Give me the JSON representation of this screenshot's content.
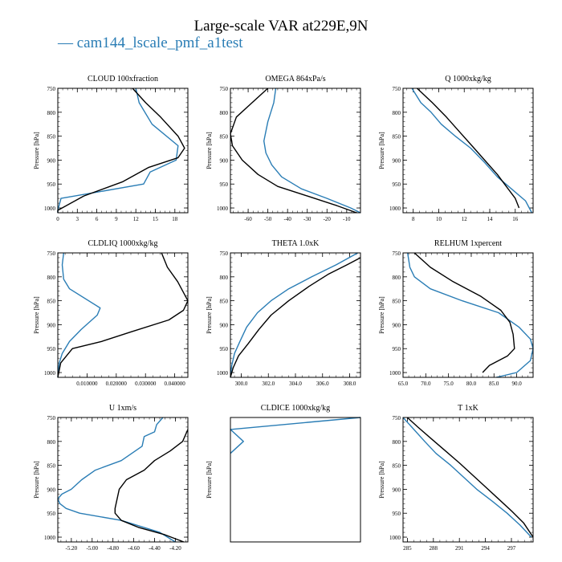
{
  "title": "Large-scale VAR at229E,9N",
  "legend": {
    "line": "—",
    "label": "cam144_lscale_pmf_a1test"
  },
  "colors": {
    "test": "#2a7db5",
    "control": "#000000"
  },
  "chart_data": [
    {
      "type": "line",
      "title": "CLOUD 100xfraction",
      "ylabel": "Pressure [hPa]",
      "xlim": [
        0,
        20
      ],
      "ylim": [
        1010,
        750
      ],
      "ylog": false,
      "xticks": [
        0,
        3,
        6,
        9,
        12,
        15,
        18
      ],
      "xticklabels": [
        "0",
        "3",
        "6",
        "9",
        "12",
        "15",
        "18"
      ],
      "yticks": [
        750,
        800,
        850,
        900,
        950,
        1000
      ],
      "yticklabels": [
        "750",
        "800",
        "850",
        "900",
        "950",
        "1000"
      ],
      "series": [
        {
          "color": "#2a7db5",
          "x": [
            12,
            12.5,
            14.5,
            18.5,
            18.2,
            14.2,
            13.2,
            0.5,
            0,
            0
          ],
          "y": [
            750,
            780,
            825,
            870,
            900,
            925,
            950,
            980,
            1005,
            1010
          ]
        },
        {
          "color": "#000000",
          "x": [
            11.5,
            13.5,
            15.8,
            18.5,
            19.5,
            18.5,
            14,
            10,
            4,
            0,
            0
          ],
          "y": [
            750,
            780,
            810,
            850,
            875,
            895,
            915,
            945,
            975,
            1005,
            1010
          ]
        }
      ]
    },
    {
      "type": "line",
      "title": "OMEGA 864xPa/s",
      "ylabel": "Pressure [hPa]",
      "xlim": [
        -69,
        -3
      ],
      "ylim": [
        1010,
        750
      ],
      "ylog": false,
      "xticks": [
        -60,
        -50,
        -40,
        -30,
        -20,
        -10
      ],
      "xticklabels": [
        "-60",
        "-50",
        "-40",
        "-30",
        "-20",
        "-10"
      ],
      "yticks": [
        750,
        800,
        850,
        900,
        950,
        1000
      ],
      "yticklabels": [
        "750",
        "800",
        "850",
        "900",
        "950",
        "1000"
      ],
      "series": [
        {
          "color": "#2a7db5",
          "x": [
            -46,
            -47,
            -50,
            -52,
            -51,
            -48,
            -43,
            -33,
            -20,
            -8,
            -3
          ],
          "y": [
            750,
            780,
            820,
            860,
            885,
            910,
            935,
            960,
            980,
            1000,
            1010
          ]
        },
        {
          "color": "#000000",
          "x": [
            -50,
            -58,
            -66,
            -69,
            -68,
            -63,
            -55,
            -45,
            -30,
            -15,
            -5
          ],
          "y": [
            750,
            780,
            810,
            845,
            870,
            900,
            930,
            955,
            975,
            995,
            1010
          ]
        }
      ]
    },
    {
      "type": "line",
      "title": "Q 1000xkg/kg",
      "ylabel": "Pressure [hPa]",
      "xlim": [
        7.2,
        17.4
      ],
      "ylim": [
        1010,
        750
      ],
      "ylog": false,
      "xticks": [
        8,
        10,
        12,
        14,
        16
      ],
      "xticklabels": [
        "8",
        "10",
        "12",
        "14",
        "16"
      ],
      "yticks": [
        750,
        800,
        850,
        900,
        950,
        1000
      ],
      "yticklabels": [
        "750",
        "800",
        "850",
        "900",
        "950",
        "1000"
      ],
      "series": [
        {
          "color": "#2a7db5",
          "x": [
            7.9,
            8.6,
            9.4,
            10.2,
            11.3,
            12.5,
            13.6,
            14.6,
            15.7,
            16.8,
            17.3
          ],
          "y": [
            750,
            780,
            800,
            825,
            850,
            875,
            905,
            935,
            960,
            985,
            1010
          ]
        },
        {
          "color": "#000000",
          "x": [
            8.3,
            9.5,
            10.6,
            11.6,
            12.6,
            13.6,
            14.6,
            15.3,
            16,
            16.3
          ],
          "y": [
            750,
            780,
            810,
            840,
            870,
            900,
            930,
            955,
            980,
            1000
          ]
        }
      ]
    },
    {
      "type": "line",
      "title": "CLDLIQ 1000xkg/kg",
      "ylabel": "Pressure [hPa]",
      "xlim": [
        0,
        0.0445
      ],
      "ylim": [
        1010,
        750
      ],
      "ylog": false,
      "xticks": [
        0.01,
        0.02,
        0.03,
        0.04
      ],
      "xticklabels": [
        "0.010000",
        "0.020000",
        "0.030000",
        "0.040000"
      ],
      "yticks": [
        750,
        800,
        850,
        900,
        950,
        1000
      ],
      "yticklabels": [
        "750",
        "800",
        "850",
        "900",
        "950",
        "1000"
      ],
      "series": [
        {
          "color": "#2a7db5",
          "x": [
            0.002,
            0.0015,
            0.002,
            0.004,
            0.0145,
            0.0135,
            0.008,
            0.004,
            0.0015,
            0.0005,
            0.0001,
            0
          ],
          "y": [
            750,
            775,
            805,
            825,
            865,
            880,
            910,
            935,
            960,
            980,
            1000,
            1010
          ]
        },
        {
          "color": "#000000",
          "x": [
            0.0355,
            0.0375,
            0.041,
            0.0445,
            0.043,
            0.038,
            0.025,
            0.015,
            0.005,
            0.001,
            0
          ],
          "y": [
            750,
            780,
            810,
            850,
            870,
            890,
            915,
            935,
            950,
            980,
            1010
          ]
        }
      ]
    },
    {
      "type": "line",
      "title": "THETA 1.0xK",
      "ylabel": "Pressure [hPa]",
      "xlim": [
        299.2,
        308.8
      ],
      "ylim": [
        1010,
        750
      ],
      "ylog": false,
      "xticks": [
        300,
        302,
        304,
        306,
        308
      ],
      "xticklabels": [
        "300.0",
        "302.0",
        "304.0",
        "306.0",
        "308.0"
      ],
      "yticks": [
        750,
        800,
        850,
        900,
        950,
        1000
      ],
      "yticklabels": [
        "750",
        "800",
        "850",
        "900",
        "950",
        "1000"
      ],
      "series": [
        {
          "color": "#2a7db5",
          "x": [
            308.6,
            307,
            305.2,
            303.5,
            302.2,
            301.2,
            300.4,
            299.9,
            299.5,
            299.3,
            299.2
          ],
          "y": [
            750,
            775,
            800,
            825,
            850,
            875,
            905,
            935,
            960,
            985,
            1010
          ]
        },
        {
          "color": "#000000",
          "x": [
            308.8,
            307.8,
            306.4,
            305,
            303.5,
            302.2,
            301.3,
            300.5,
            299.8,
            299.4,
            299.2
          ],
          "y": [
            760,
            775,
            795,
            820,
            850,
            880,
            910,
            940,
            965,
            990,
            1010
          ]
        }
      ]
    },
    {
      "type": "line",
      "title": "RELHUM 1xpercent",
      "ylabel": "Pressure [hPa]",
      "xlim": [
        65,
        93.6
      ],
      "ylim": [
        1010,
        750
      ],
      "ylog": false,
      "xticks": [
        65,
        70,
        75,
        80,
        85,
        90
      ],
      "xticklabels": [
        "65.0",
        "70.0",
        "75.0",
        "80.0",
        "85.0",
        "90.0"
      ],
      "yticks": [
        750,
        800,
        850,
        900,
        950,
        1000
      ],
      "yticklabels": [
        "750",
        "800",
        "850",
        "900",
        "950",
        "1000"
      ],
      "series": [
        {
          "color": "#2a7db5",
          "x": [
            66,
            66.5,
            67.5,
            71,
            78,
            86,
            90.5,
            93,
            93.6,
            93,
            90,
            85.5
          ],
          "y": [
            750,
            780,
            800,
            825,
            850,
            875,
            905,
            930,
            950,
            975,
            1000,
            1010
          ]
        },
        {
          "color": "#000000",
          "x": [
            67.5,
            71,
            76,
            82,
            86.5,
            88.5,
            89.2,
            89.5,
            88,
            84,
            82.5
          ],
          "y": [
            750,
            780,
            810,
            840,
            870,
            895,
            920,
            950,
            965,
            985,
            1000
          ]
        }
      ]
    },
    {
      "type": "line",
      "title": "U 1xm/s",
      "ylabel": "Pressure [hPa]",
      "xlim": [
        -5.33,
        -4.08
      ],
      "ylim": [
        1010,
        750
      ],
      "ylog": false,
      "xticks": [
        -5.2,
        -5.0,
        -4.8,
        -4.6,
        -4.4,
        -4.2
      ],
      "xticklabels": [
        "-5.20",
        "-5.00",
        "-4.80",
        "-4.60",
        "-4.40",
        "-4.20"
      ],
      "yticks": [
        750,
        800,
        850,
        900,
        950,
        1000
      ],
      "yticklabels": [
        "750",
        "800",
        "850",
        "900",
        "950",
        "1000"
      ],
      "series": [
        {
          "color": "#2a7db5",
          "x": [
            -4.32,
            -4.38,
            -4.4,
            -4.5,
            -4.52,
            -4.72,
            -4.97,
            -5.1,
            -5.2,
            -5.29,
            -5.33,
            -5.31,
            -5.25,
            -5.12,
            -4.72,
            -4.35,
            -4.2
          ],
          "y": [
            750,
            765,
            780,
            790,
            810,
            840,
            860,
            880,
            900,
            910,
            920,
            930,
            940,
            950,
            965,
            990,
            1010
          ]
        },
        {
          "color": "#000000",
          "x": [
            -4.08,
            -4.13,
            -4.25,
            -4.4,
            -4.5,
            -4.67,
            -4.74,
            -4.76,
            -4.78,
            -4.78,
            -4.72,
            -4.55,
            -4.3,
            -4.12
          ],
          "y": [
            775,
            800,
            820,
            840,
            860,
            880,
            900,
            920,
            940,
            950,
            965,
            980,
            995,
            1010
          ]
        }
      ]
    },
    {
      "type": "line",
      "title": "CLDICE 1000xkg/kg",
      "ylabel": "Pressure [hPa]",
      "xlim": [
        0,
        1
      ],
      "ylim": [
        1010,
        750
      ],
      "ylog": false,
      "xticks": [],
      "xticklabels": [],
      "yticks": [],
      "yticklabels": [],
      "series": [
        {
          "color": "#2a7db5",
          "x": [
            1,
            0,
            0.1,
            0
          ],
          "y": [
            750,
            775,
            800,
            825
          ]
        }
      ]
    },
    {
      "type": "line",
      "title": "T 1xK",
      "ylabel": "Pressure [hPa]",
      "xlim": [
        284.5,
        299.5
      ],
      "ylim": [
        1010,
        750
      ],
      "ylog": false,
      "xticks": [
        285,
        288,
        291,
        294,
        297
      ],
      "xticklabels": [
        "285",
        "288",
        "291",
        "294",
        "297"
      ],
      "yticks": [
        750,
        800,
        850,
        900,
        950,
        1000
      ],
      "yticklabels": [
        "750",
        "800",
        "850",
        "900",
        "950",
        "1000"
      ],
      "series": [
        {
          "color": "#2a7db5",
          "x": [
            284.5,
            285.5,
            287,
            288.3,
            290,
            291.5,
            293,
            294.8,
            296.5,
            298,
            299.3
          ],
          "y": [
            750,
            770,
            800,
            825,
            850,
            875,
            900,
            925,
            950,
            975,
            1000
          ]
        },
        {
          "color": "#000000",
          "x": [
            285,
            286.2,
            287.8,
            289.4,
            291,
            292.5,
            294,
            295.5,
            297,
            298.4,
            299.5
          ],
          "y": [
            750,
            770,
            795,
            820,
            845,
            870,
            895,
            920,
            945,
            970,
            1000
          ]
        }
      ]
    }
  ]
}
